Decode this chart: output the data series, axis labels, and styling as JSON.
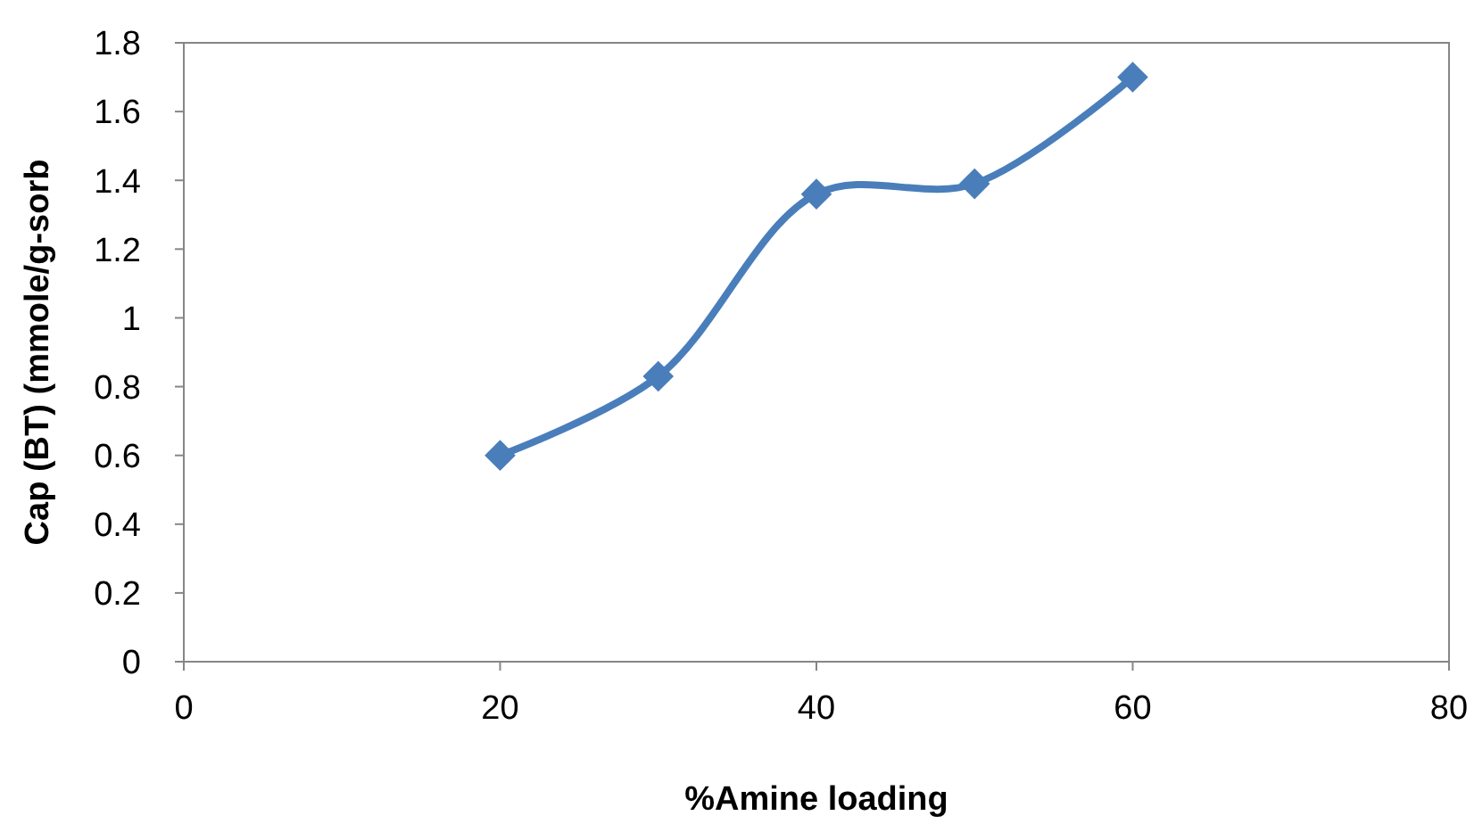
{
  "chart_data": {
    "type": "line",
    "xlabel": "%Amine loading",
    "ylabel": "Cap (BT) (mmole/g-sorb",
    "x": [
      20,
      30,
      40,
      50,
      60
    ],
    "series": [
      {
        "color": "#4a7ebb",
        "values": [
          0.6,
          0.83,
          1.36,
          1.39,
          1.7
        ]
      }
    ],
    "xlim": [
      0,
      80
    ],
    "xticks": [
      0,
      20,
      40,
      60,
      80
    ],
    "ylim": [
      0,
      1.8
    ],
    "yticks": [
      0,
      0.2,
      0.4,
      0.6,
      0.8,
      1,
      1.2,
      1.4,
      1.6,
      1.8
    ],
    "marker": "diamond",
    "line_style": "solid"
  }
}
